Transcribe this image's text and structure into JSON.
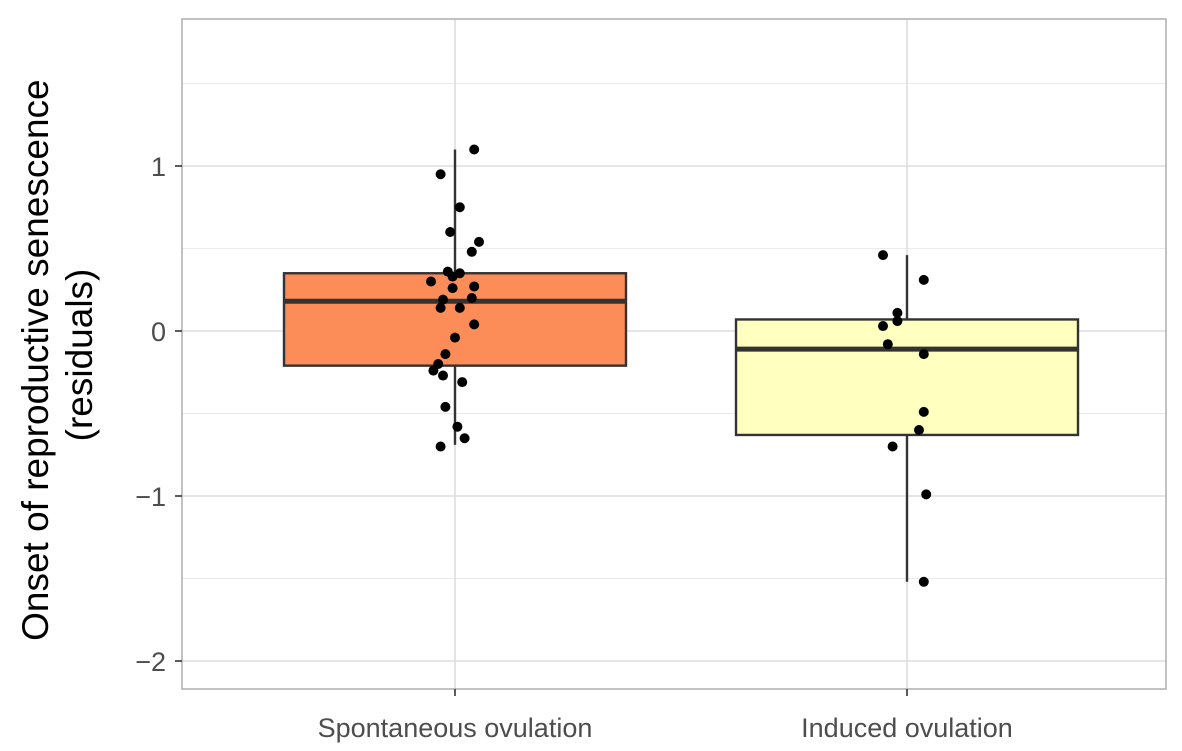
{
  "chart_data": {
    "type": "box",
    "title": "",
    "xlabel": "",
    "ylabel_line1": "Onset of reproductive senescence",
    "ylabel_line2": "(residuals)",
    "ylim": [
      -2.2,
      1.9
    ],
    "yticks": [
      -2,
      -1,
      0,
      1
    ],
    "ytick_labels": [
      "−2",
      "−1",
      "0",
      "1"
    ],
    "grid": true,
    "categories": [
      "Spontaneous ovulation",
      "Induced ovulation"
    ],
    "boxes": [
      {
        "category": "Spontaneous ovulation",
        "color": "#fc8d59",
        "whisker_low": -0.69,
        "q1": -0.21,
        "median": 0.18,
        "q3": 0.35,
        "whisker_high": 1.1
      },
      {
        "category": "Induced ovulation",
        "color": "#ffffbf",
        "whisker_low": -1.52,
        "q1": -0.63,
        "median": -0.11,
        "q3": 0.07,
        "whisker_high": 0.46
      }
    ],
    "points": [
      {
        "category": "Spontaneous ovulation",
        "values": [
          1.1,
          0.95,
          0.75,
          0.6,
          0.54,
          0.48,
          0.36,
          0.35,
          0.33,
          0.3,
          0.27,
          0.26,
          0.2,
          0.19,
          0.14,
          0.14,
          0.04,
          -0.04,
          -0.14,
          -0.2,
          -0.24,
          -0.27,
          -0.31,
          -0.46,
          -0.58,
          -0.65,
          -0.7
        ],
        "jitter": [
          0.04,
          -0.03,
          0.01,
          -0.01,
          0.05,
          0.035,
          -0.015,
          0.01,
          -0.005,
          -0.05,
          0.04,
          -0.005,
          0.035,
          -0.025,
          -0.03,
          0.01,
          0.04,
          0.0,
          -0.02,
          -0.035,
          -0.045,
          -0.025,
          0.015,
          -0.02,
          0.005,
          0.02,
          -0.03
        ]
      },
      {
        "category": "Induced ovulation",
        "values": [
          0.46,
          0.31,
          0.11,
          0.06,
          0.03,
          -0.08,
          -0.14,
          -0.49,
          -0.6,
          -0.7,
          -0.99,
          -1.52
        ],
        "jitter": [
          -0.05,
          0.035,
          -0.02,
          -0.02,
          -0.05,
          -0.04,
          0.035,
          0.035,
          0.025,
          -0.03,
          0.04,
          0.035
        ]
      }
    ]
  }
}
